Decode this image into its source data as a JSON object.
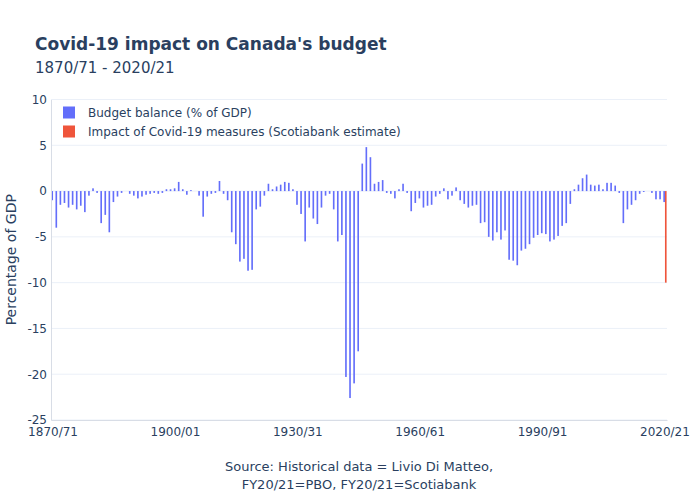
{
  "chart_data": {
    "type": "bar",
    "title": "Covid-19 impact on Canada's budget",
    "subtitle": "1870/71 - 2020/21",
    "y_label": "Percentage of GDP",
    "x_label": [
      "Source: Historical data = Livio Di Matteo,",
      "FY20/21=PBO, FY20/21=Scotiabank"
    ],
    "categories": [
      "1870/71",
      null,
      null,
      null,
      null,
      null,
      null,
      null,
      null,
      null,
      null,
      null,
      null,
      null,
      null,
      null,
      null,
      null,
      null,
      null,
      null,
      null,
      null,
      null,
      null,
      null,
      null,
      null,
      null,
      null,
      "1900/01",
      null,
      null,
      null,
      null,
      null,
      null,
      null,
      null,
      null,
      null,
      null,
      null,
      null,
      null,
      null,
      null,
      null,
      null,
      null,
      null,
      null,
      null,
      null,
      null,
      null,
      null,
      null,
      null,
      null,
      "1930/31",
      null,
      null,
      null,
      null,
      null,
      null,
      null,
      null,
      null,
      null,
      null,
      null,
      null,
      null,
      null,
      null,
      null,
      null,
      null,
      null,
      null,
      null,
      null,
      null,
      null,
      null,
      null,
      null,
      null,
      "1960/61",
      null,
      null,
      null,
      null,
      null,
      null,
      null,
      null,
      null,
      null,
      null,
      null,
      null,
      null,
      null,
      null,
      null,
      null,
      null,
      null,
      null,
      null,
      null,
      null,
      null,
      null,
      null,
      null,
      null,
      "1990/91",
      null,
      null,
      null,
      null,
      null,
      null,
      null,
      null,
      null,
      null,
      null,
      null,
      null,
      null,
      null,
      null,
      null,
      null,
      null,
      null,
      null,
      null,
      null,
      null,
      null,
      null,
      null,
      null,
      null,
      "2020/21"
    ],
    "series": [
      {
        "name": "Budget balance (% of GDP)",
        "color": "#636efa",
        "values": [
          -1.0,
          -4.0,
          -1.5,
          -1.3,
          -1.8,
          -1.5,
          -2.0,
          -1.6,
          -2.3,
          -0.5,
          0.3,
          -0.2,
          -3.5,
          -2.6,
          -4.5,
          -1.2,
          -0.6,
          -0.2,
          0.0,
          -0.3,
          -0.5,
          -0.8,
          -0.6,
          -0.4,
          -0.3,
          -0.2,
          -0.3,
          -0.2,
          0.2,
          0.2,
          0.3,
          1.0,
          0.2,
          -0.4,
          0.1,
          0.0,
          -0.5,
          -2.8,
          -0.6,
          -0.3,
          -0.2,
          1.1,
          -0.3,
          -1.0,
          -4.5,
          -5.8,
          -7.7,
          -7.4,
          -8.7,
          -8.6,
          -2.0,
          -1.7,
          -0.5,
          0.8,
          0.2,
          0.5,
          0.7,
          1.0,
          0.9,
          0.2,
          -1.5,
          -2.5,
          -5.5,
          -1.8,
          -3.0,
          -3.6,
          -1.8,
          -0.5,
          -0.3,
          -2.0,
          -5.5,
          -4.8,
          -20.3,
          -22.6,
          -21.0,
          -17.5,
          3.0,
          4.8,
          3.7,
          0.8,
          1.0,
          1.2,
          -0.2,
          -0.3,
          -0.8,
          0.2,
          0.8,
          -0.2,
          -2.2,
          -1.3,
          -0.8,
          -1.8,
          -1.6,
          -1.5,
          -0.6,
          -0.3,
          0.3,
          -0.9,
          -0.5,
          0.4,
          -1.0,
          -1.4,
          -1.8,
          -1.6,
          -1.5,
          -3.5,
          -3.4,
          -5.0,
          -5.4,
          -4.5,
          -5.3,
          -4.3,
          -7.5,
          -7.6,
          -8.1,
          -6.5,
          -6.3,
          -5.8,
          -5.1,
          -4.8,
          -4.6,
          -4.7,
          -5.5,
          -5.3,
          -4.9,
          -3.8,
          -3.5,
          -1.4,
          0.2,
          0.7,
          1.4,
          1.8,
          0.7,
          0.6,
          0.7,
          0.2,
          0.9,
          0.9,
          0.6,
          -0.2,
          -3.5,
          -2.0,
          -1.5,
          -1.0,
          -0.3,
          -0.1,
          0.0,
          -0.2,
          -0.9,
          -0.9,
          -1.2
        ]
      },
      {
        "name": "Impact of Covid-19 measures (Scotiabank estimate)",
        "color": "#ef553b",
        "values": [
          null,
          null,
          null,
          null,
          null,
          null,
          null,
          null,
          null,
          null,
          null,
          null,
          null,
          null,
          null,
          null,
          null,
          null,
          null,
          null,
          null,
          null,
          null,
          null,
          null,
          null,
          null,
          null,
          null,
          null,
          null,
          null,
          null,
          null,
          null,
          null,
          null,
          null,
          null,
          null,
          null,
          null,
          null,
          null,
          null,
          null,
          null,
          null,
          null,
          null,
          null,
          null,
          null,
          null,
          null,
          null,
          null,
          null,
          null,
          null,
          null,
          null,
          null,
          null,
          null,
          null,
          null,
          null,
          null,
          null,
          null,
          null,
          null,
          null,
          null,
          null,
          null,
          null,
          null,
          null,
          null,
          null,
          null,
          null,
          null,
          null,
          null,
          null,
          null,
          null,
          null,
          null,
          null,
          null,
          null,
          null,
          null,
          null,
          null,
          null,
          null,
          null,
          null,
          null,
          null,
          null,
          null,
          null,
          null,
          null,
          null,
          null,
          null,
          null,
          null,
          null,
          null,
          null,
          null,
          null,
          null,
          null,
          null,
          null,
          null,
          null,
          null,
          null,
          null,
          null,
          null,
          null,
          null,
          null,
          null,
          null,
          null,
          null,
          null,
          null,
          null,
          null,
          null,
          null,
          null,
          null,
          null,
          null,
          null,
          null,
          -10.0
        ]
      }
    ],
    "ylim": [
      -25,
      10
    ],
    "yticks": [
      -25,
      -20,
      -15,
      -10,
      -5,
      0,
      5,
      10
    ],
    "grid": true,
    "legend": "top-left"
  }
}
